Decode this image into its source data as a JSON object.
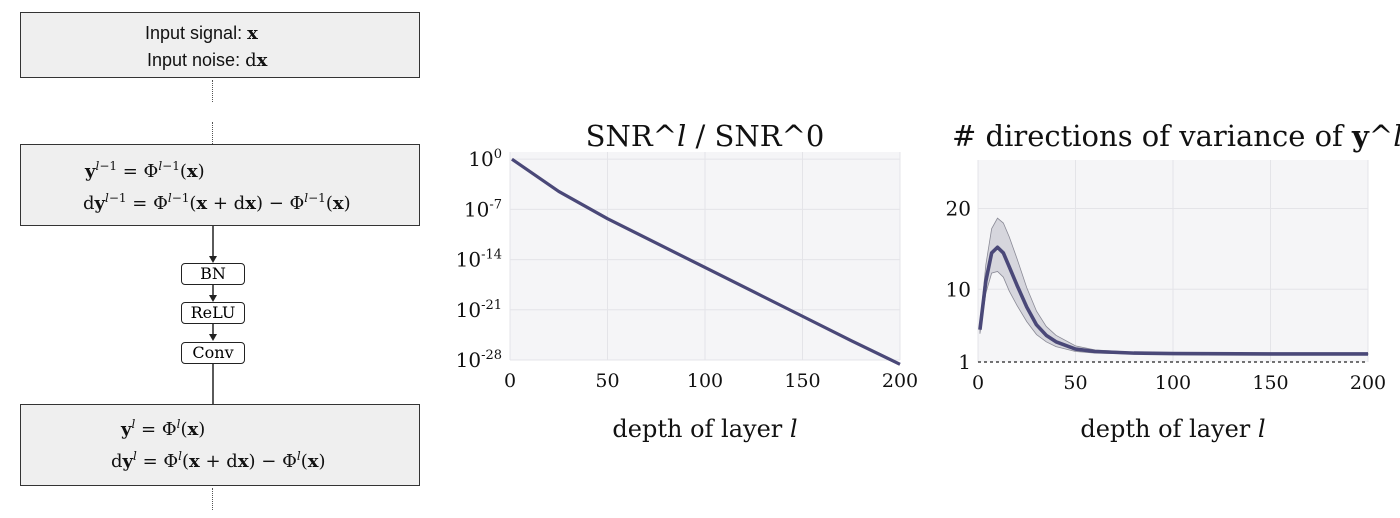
{
  "diagram": {
    "input_box": {
      "signal_label": "Input signal:",
      "signal_var": "x",
      "noise_label": "Input noise:",
      "noise_var": "dx"
    },
    "prev_box": {
      "line1": "y^{l-1} = Φ^{l-1}(x)",
      "line2": "dy^{l-1} = Φ^{l-1}(x + dx) − Φ^{l-1}(x)"
    },
    "ops": [
      "BN",
      "ReLU",
      "Conv"
    ],
    "next_box": {
      "line1": "y^l = Φ^l(x)",
      "line2": "dy^l = Φ^l(x + dx) − Φ^l(x)"
    }
  },
  "chart_data": [
    {
      "type": "line",
      "title": "SNR^l / SNR^0",
      "xlabel": "depth of layer l",
      "ylabel": "",
      "y_scale": "log",
      "xlim": [
        0,
        200
      ],
      "ylim_log10": [
        -28,
        1
      ],
      "x_ticks": [
        "0",
        "50",
        "100",
        "150",
        "200"
      ],
      "y_ticks": [
        "10^0",
        "10^-7",
        "10^-14",
        "10^-21",
        "10^-28"
      ],
      "grid": true,
      "color": "#4a4878",
      "series": [
        {
          "x": [
            1,
            25,
            50,
            75,
            100,
            125,
            150,
            175,
            200
          ],
          "log10_y": [
            0,
            -4.5,
            -8.3,
            -11.7,
            -15.1,
            -18.5,
            -21.9,
            -25.3,
            -28.6
          ]
        }
      ]
    },
    {
      "type": "line",
      "title": "# directions of variance of y^l",
      "xlabel": "depth of layer l",
      "ylabel": "",
      "y_scale": "linear",
      "xlim": [
        0,
        200
      ],
      "ylim": [
        1,
        26
      ],
      "x_ticks": [
        "0",
        "50",
        "100",
        "150",
        "200"
      ],
      "y_ticks": [
        "1",
        "10",
        "20"
      ],
      "reference_line": {
        "y": 1,
        "style": "dashed"
      },
      "grid": true,
      "color": "#4a4878",
      "series": [
        {
          "x": [
            1,
            4,
            7,
            10,
            13,
            16,
            20,
            25,
            30,
            35,
            40,
            50,
            60,
            80,
            100,
            150,
            200
          ],
          "y": [
            5,
            11,
            14.5,
            15.2,
            14.5,
            12.8,
            10.5,
            7.8,
            5.6,
            4.3,
            3.5,
            2.6,
            2.3,
            2.1,
            2.05,
            2.0,
            2.0
          ],
          "band_upper": [
            5.5,
            13,
            17.5,
            18.8,
            18.2,
            16.5,
            13.8,
            10.2,
            7.3,
            5.4,
            4.3,
            3.0,
            2.5,
            2.2,
            2.1,
            2.05,
            2.05
          ],
          "band_lower": [
            4.5,
            9.5,
            12.0,
            12.2,
            11.5,
            9.8,
            8.0,
            6.0,
            4.4,
            3.5,
            2.9,
            2.3,
            2.1,
            2.0,
            1.95,
            1.95,
            1.95
          ]
        }
      ]
    }
  ]
}
